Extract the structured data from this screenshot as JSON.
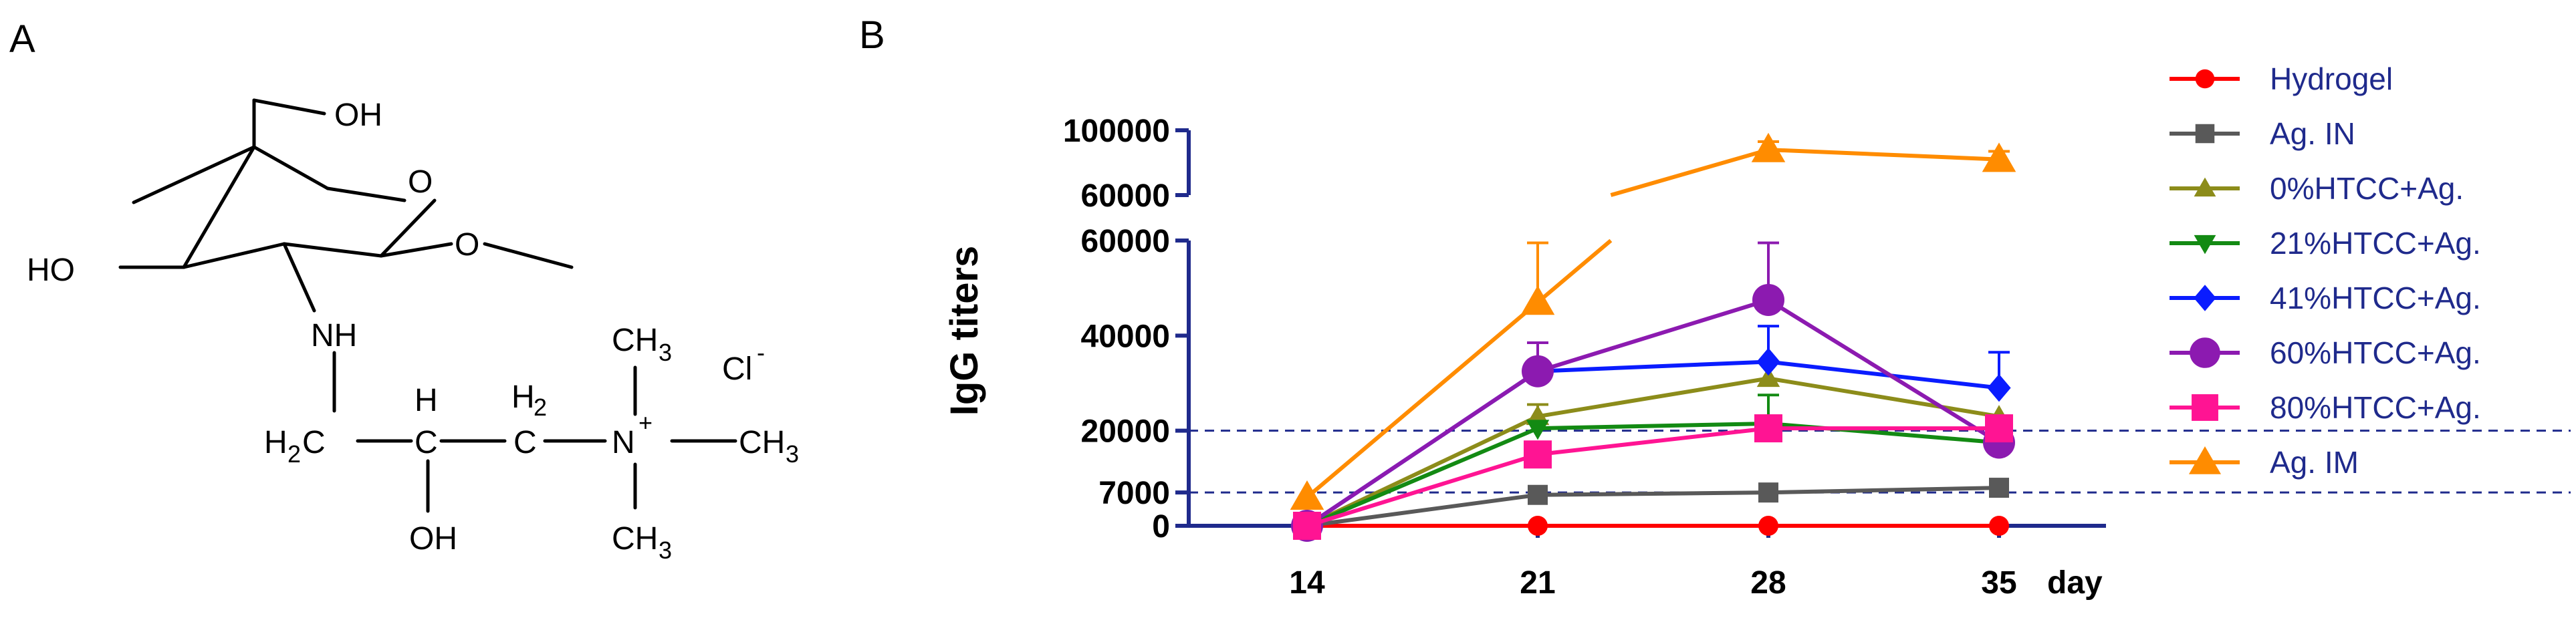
{
  "panels": {
    "a_label": "A",
    "b_label": "B"
  },
  "structure": {
    "labels": {
      "oh_top": "OH",
      "o_ring": "O",
      "o_methoxy": "O",
      "ho_left": "HO",
      "nh": "NH",
      "h_ch": "H",
      "c_ch": "C",
      "oh_bottom": "OH",
      "h2_ch2": "H",
      "h2_ch2_sub": "2",
      "c_ch2": "C",
      "h2c_h": "H",
      "h2c_sub": "2",
      "h2c_c": "C",
      "n_plus": "N",
      "plus": "+",
      "ch3_top": "CH",
      "ch3_top_sub": "3",
      "ch3_right": "CH",
      "ch3_right_sub": "3",
      "ch3_bottom": "CH",
      "ch3_bottom_sub": "3",
      "chloride": "Cl",
      "chloride_charge": "-"
    }
  },
  "chart_data": {
    "type": "line",
    "xlabel": "day",
    "ylabel": "IgG titers",
    "x": [
      14,
      21,
      28,
      35
    ],
    "x_tick_labels": [
      "14",
      "21",
      "28",
      "35"
    ],
    "y_axis_segments": [
      {
        "range": [
          0,
          60000
        ],
        "tick_labels": [
          "0",
          "7000",
          "20000",
          "40000",
          "60000"
        ]
      },
      {
        "range": [
          60000,
          100000
        ],
        "tick_labels": [
          "60000",
          "100000"
        ]
      }
    ],
    "reference_lines": [
      7000,
      20000
    ],
    "legend_position": "right",
    "series": [
      {
        "name": "Hydrogel",
        "color": "#ff0000",
        "marker": "circle",
        "values": [
          0,
          0,
          0,
          0
        ],
        "errors": [
          0,
          0,
          0,
          0
        ]
      },
      {
        "name": "Ag. IN",
        "color": "#595959",
        "marker": "square",
        "values": [
          0,
          6500,
          7000,
          8000
        ],
        "errors": [
          0,
          0,
          0,
          0
        ]
      },
      {
        "name": "0%HTCC+Ag.",
        "color": "#8c8c1a",
        "marker": "triangle-up",
        "values": [
          0,
          23000,
          31000,
          23000
        ],
        "errors": [
          0,
          2500,
          0,
          0
        ]
      },
      {
        "name": "21%HTCC+Ag.",
        "color": "#138a13",
        "marker": "triangle-down",
        "values": [
          0,
          20500,
          21500,
          17500
        ],
        "errors": [
          0,
          0,
          6000,
          0
        ]
      },
      {
        "name": "41%HTCC+Ag.",
        "color": "#0a1cff",
        "marker": "diamond",
        "values": [
          0,
          32500,
          34500,
          29000
        ],
        "errors": [
          0,
          0,
          7500,
          7500
        ]
      },
      {
        "name": "60%HTCC+Ag.",
        "color": "#8c1ab0",
        "marker": "circle",
        "values": [
          0,
          32500,
          47500,
          17500
        ],
        "errors": [
          0,
          6000,
          12000,
          0
        ]
      },
      {
        "name": "80%HTCC+Ag.",
        "color": "#ff1493",
        "marker": "square",
        "values": [
          0,
          15000,
          20500,
          20500
        ],
        "errors": [
          0,
          0,
          0,
          0
        ]
      },
      {
        "name": "Ag. IM",
        "color": "#ff8c00",
        "marker": "triangle-up",
        "values": [
          6000,
          47000,
          88000,
          82000
        ],
        "errors": [
          0,
          12500,
          5000,
          5000
        ]
      }
    ]
  }
}
